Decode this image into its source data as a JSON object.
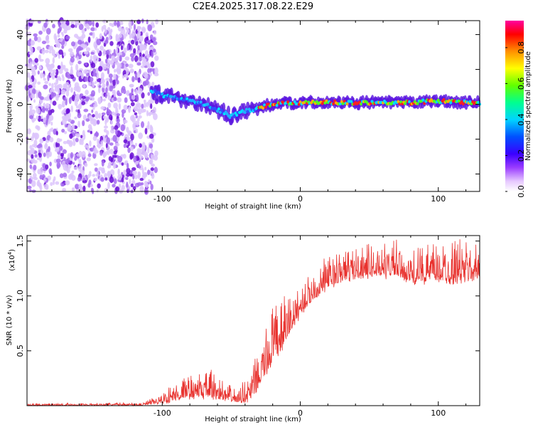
{
  "title": "C2E4.2025.317.08.22.E29",
  "chart_data": [
    {
      "type": "heatmap",
      "name": "spectrogram",
      "xlabel": "Height of straight line (km)",
      "ylabel": "Frequency (Hz)",
      "xlim": [
        -198,
        130
      ],
      "ylim": [
        -50,
        48
      ],
      "x_ticks": [
        -100,
        0,
        100
      ],
      "x_tick_labels": [
        "-100",
        "0",
        "100"
      ],
      "y_ticks": [
        -40,
        -20,
        0,
        20,
        40
      ],
      "y_tick_labels": [
        "-40",
        "-20",
        "0",
        "20",
        "40"
      ],
      "ridge": {
        "x": [
          -108,
          -100,
          -90,
          -80,
          -70,
          -60,
          -50,
          -45,
          -40,
          -35,
          -30,
          -20,
          -10,
          0,
          20,
          40,
          60,
          80,
          100,
          120,
          130
        ],
        "frequency": [
          8,
          5,
          4,
          2,
          0,
          -3,
          -7,
          -5,
          -4,
          -3,
          -2,
          0,
          1,
          1,
          1,
          1,
          1,
          1,
          2,
          1,
          1
        ]
      },
      "noise_region_x": [
        -198,
        -108
      ],
      "colorbar": {
        "label": "Normalized spectral amplitude",
        "range": [
          0,
          0.95
        ],
        "ticks": [
          0.0,
          0.2,
          0.4,
          0.6,
          0.8
        ],
        "tick_labels": [
          "0.0",
          "0.2",
          "0.4",
          "0.6",
          "0.8"
        ]
      }
    },
    {
      "type": "line",
      "name": "snr",
      "xlabel": "Height of straight line (km)",
      "ylabel": "SNR (10 * v/v)",
      "scale_label": "(x10",
      "scale_exponent": "4",
      "scale_close": ")",
      "xlim": [
        -198,
        130
      ],
      "ylim": [
        0,
        1.55
      ],
      "x_ticks": [
        -100,
        0,
        100
      ],
      "x_tick_labels": [
        "-100",
        "0",
        "100"
      ],
      "y_ticks": [
        0.5,
        1.0,
        1.5
      ],
      "y_tick_labels": [
        "0.5",
        "1.0",
        "1.5"
      ],
      "color": "#e8322e",
      "envelope": {
        "x": [
          -198,
          -115,
          -105,
          -95,
          -85,
          -75,
          -65,
          -55,
          -45,
          -35,
          -30,
          -25,
          -20,
          -15,
          -10,
          -5,
          0,
          10,
          20,
          30,
          40,
          50,
          60,
          70,
          80,
          90,
          100,
          110,
          120,
          130
        ],
        "low": [
          0.0,
          0.0,
          0.01,
          0.02,
          0.05,
          0.06,
          0.05,
          0.03,
          0.02,
          0.03,
          0.15,
          0.25,
          0.35,
          0.45,
          0.55,
          0.7,
          0.8,
          0.95,
          1.05,
          1.1,
          1.15,
          1.15,
          1.15,
          1.15,
          1.1,
          1.1,
          1.1,
          1.1,
          1.1,
          1.15
        ],
        "high": [
          0.02,
          0.03,
          0.08,
          0.18,
          0.26,
          0.3,
          0.34,
          0.22,
          0.14,
          0.38,
          0.52,
          0.72,
          0.94,
          0.92,
          1.05,
          1.05,
          1.1,
          1.25,
          1.38,
          1.42,
          1.45,
          1.48,
          1.5,
          1.52,
          1.4,
          1.48,
          1.5,
          1.53,
          1.52,
          1.45
        ]
      }
    }
  ]
}
